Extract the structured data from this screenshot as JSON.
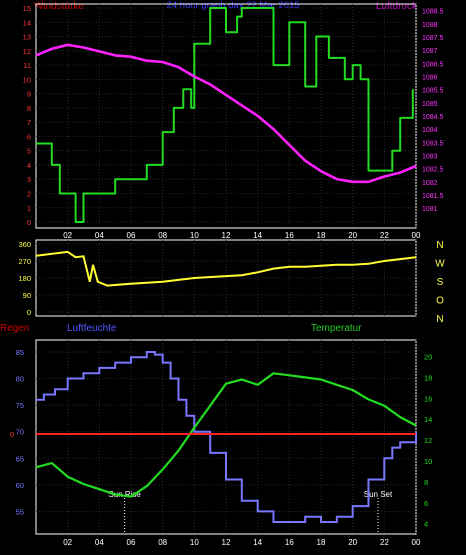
{
  "chart_data": [
    {
      "type": "line",
      "title": "24 hour graph day 22 Mar 2015",
      "left_axis_title": "Windstärke",
      "right_axis_title": "Luftdruck",
      "x_ticks": [
        "02",
        "04",
        "06",
        "08",
        "10",
        "12",
        "14",
        "16",
        "18",
        "20",
        "22",
        "00"
      ],
      "left_ticks": [
        "0",
        "1",
        "2",
        "3",
        "4",
        "5",
        "6",
        "7",
        "8",
        "9",
        "10",
        "11",
        "12",
        "13",
        "14",
        "15"
      ],
      "right_ticks": [
        "1081",
        "1081.5",
        "1082",
        "1082.5",
        "1083",
        "1083.5",
        "1084",
        "1084.5",
        "1085",
        "1085.5",
        "1086",
        "1086.5",
        "1087",
        "1087.5",
        "1088",
        "1088.5"
      ],
      "xlim": [
        0,
        24
      ],
      "left_ylim": [
        0,
        15
      ],
      "right_ylim": [
        1080.7,
        1088.6
      ],
      "series": [
        {
          "name": "Windstärke",
          "color": "#22dd22",
          "axis": "left",
          "step": true,
          "points": [
            [
              0,
              5.5
            ],
            [
              1,
              4
            ],
            [
              1.5,
              2
            ],
            [
              2.5,
              0
            ],
            [
              3,
              2
            ],
            [
              5,
              3
            ],
            [
              7,
              4
            ],
            [
              8,
              6.3
            ],
            [
              8.7,
              8
            ],
            [
              9.3,
              9.3
            ],
            [
              9.8,
              8
            ],
            [
              10,
              12.5
            ],
            [
              11,
              15
            ],
            [
              12,
              13.3
            ],
            [
              12.7,
              14.4
            ],
            [
              13,
              15
            ],
            [
              14,
              15
            ],
            [
              15,
              11
            ],
            [
              16,
              14
            ],
            [
              17,
              9.5
            ],
            [
              17.7,
              13
            ],
            [
              18.5,
              11.5
            ],
            [
              19.5,
              10
            ],
            [
              20,
              11
            ],
            [
              20.5,
              10
            ],
            [
              21,
              3.6
            ],
            [
              22.5,
              5
            ],
            [
              23,
              7.3
            ],
            [
              23.8,
              9.3
            ]
          ]
        },
        {
          "name": "Luftdruck",
          "color": "#ff22ff",
          "axis": "right",
          "points": [
            [
              0,
              1086.8
            ],
            [
              1,
              1087.05
            ],
            [
              2,
              1087.2
            ],
            [
              3,
              1087.1
            ],
            [
              4,
              1086.95
            ],
            [
              5,
              1086.8
            ],
            [
              6,
              1086.75
            ],
            [
              7,
              1086.6
            ],
            [
              8,
              1086.55
            ],
            [
              9,
              1086.35
            ],
            [
              10,
              1086.0
            ],
            [
              11,
              1085.7
            ],
            [
              12,
              1085.3
            ],
            [
              13,
              1084.9
            ],
            [
              14,
              1084.5
            ],
            [
              15,
              1084.0
            ],
            [
              16,
              1083.4
            ],
            [
              17,
              1082.8
            ],
            [
              18,
              1082.4
            ],
            [
              19,
              1082.1
            ],
            [
              20,
              1082.0
            ],
            [
              21,
              1082.0
            ],
            [
              22,
              1082.2
            ],
            [
              23,
              1082.35
            ],
            [
              24,
              1082.6
            ]
          ]
        }
      ]
    },
    {
      "type": "line",
      "left_ticks": [
        "0",
        "90",
        "180",
        "270",
        "360"
      ],
      "right_ticks": [
        "N",
        "W",
        "S",
        "O",
        "N"
      ],
      "ylim": [
        0,
        360
      ],
      "xlim": [
        0,
        24
      ],
      "series": [
        {
          "name": "Windrichtung",
          "color": "#ffff33",
          "points": [
            [
              0,
              298
            ],
            [
              2,
              318
            ],
            [
              2.5,
              290
            ],
            [
              3,
              295
            ],
            [
              3.4,
              160
            ],
            [
              3.6,
              250
            ],
            [
              3.9,
              160
            ],
            [
              4.5,
              140
            ],
            [
              6,
              150
            ],
            [
              8,
              160
            ],
            [
              10,
              180
            ],
            [
              12,
              190
            ],
            [
              13,
              195
            ],
            [
              14,
              210
            ],
            [
              15,
              230
            ],
            [
              16,
              240
            ],
            [
              17,
              240
            ],
            [
              18,
              245
            ],
            [
              19,
              250
            ],
            [
              20,
              250
            ],
            [
              21,
              255
            ],
            [
              22,
              270
            ],
            [
              23,
              280
            ],
            [
              24,
              290
            ]
          ]
        }
      ]
    },
    {
      "type": "line",
      "left_title": "Regen",
      "mid_title": "Luftfeuchte",
      "right_title": "Temperatur",
      "x_ticks": [
        "02",
        "04",
        "06",
        "08",
        "10",
        "12",
        "14",
        "16",
        "18",
        "20",
        "22",
        "00"
      ],
      "humidity_ticks": [
        "55",
        "60",
        "65",
        "70",
        "75",
        "80",
        "85"
      ],
      "rain_tick": "0",
      "temp_ticks": [
        "4",
        "6",
        "8",
        "10",
        "12",
        "14",
        "16",
        "18",
        "20"
      ],
      "humidity_ylim": [
        51.5,
        86.5
      ],
      "temp_ylim": [
        3.4,
        21.2
      ],
      "xlim": [
        0,
        24
      ],
      "annotations": [
        "Sun Rise",
        "Sun Set"
      ],
      "sunrise_hour": 5.6,
      "sunset_hour": 21.6,
      "series": [
        {
          "name": "Luftfeuchte",
          "color": "#7777ff",
          "step": true,
          "points": [
            [
              0,
              76
            ],
            [
              0.5,
              77
            ],
            [
              1.2,
              78
            ],
            [
              2,
              80
            ],
            [
              3,
              81
            ],
            [
              4,
              82
            ],
            [
              5,
              83
            ],
            [
              6,
              84
            ],
            [
              6.5,
              84
            ],
            [
              7,
              85
            ],
            [
              7.5,
              84.5
            ],
            [
              8,
              83
            ],
            [
              8.5,
              80
            ],
            [
              9,
              76
            ],
            [
              9.5,
              73
            ],
            [
              10,
              70
            ],
            [
              11,
              66
            ],
            [
              12,
              61
            ],
            [
              13,
              57
            ],
            [
              14,
              55
            ],
            [
              15,
              53
            ],
            [
              16,
              53
            ],
            [
              17,
              54
            ],
            [
              18,
              53
            ],
            [
              19,
              54
            ],
            [
              20,
              56
            ],
            [
              21,
              61
            ],
            [
              22,
              65
            ],
            [
              22.5,
              67
            ],
            [
              23,
              68
            ],
            [
              24,
              70
            ]
          ]
        },
        {
          "name": "Temperatur",
          "color": "#22dd22",
          "points": [
            [
              0,
              9.4
            ],
            [
              1,
              9.8
            ],
            [
              2,
              8.5
            ],
            [
              3,
              7.8
            ],
            [
              4,
              7.3
            ],
            [
              5,
              6.8
            ],
            [
              6,
              6.6
            ],
            [
              7,
              7.6
            ],
            [
              8,
              9.2
            ],
            [
              9,
              11
            ],
            [
              10,
              13.2
            ],
            [
              11,
              15.3
            ],
            [
              12,
              17.4
            ],
            [
              13,
              17.8
            ],
            [
              14,
              17.3
            ],
            [
              15,
              18.4
            ],
            [
              16,
              18.2
            ],
            [
              17,
              18
            ],
            [
              18,
              17.8
            ],
            [
              19,
              17.3
            ],
            [
              20,
              16.8
            ],
            [
              21,
              15.9
            ],
            [
              22,
              15.3
            ],
            [
              23,
              14.2
            ],
            [
              24,
              13.4
            ]
          ]
        },
        {
          "name": "Regen",
          "color": "#ff2222",
          "points": [
            [
              0,
              0
            ],
            [
              24,
              0
            ]
          ]
        }
      ]
    }
  ]
}
